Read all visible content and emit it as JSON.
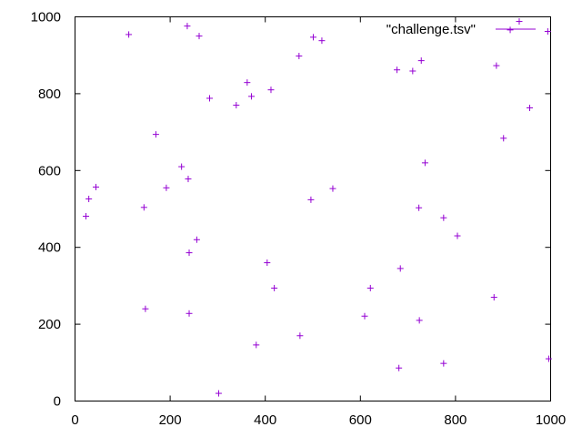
{
  "chart_data": {
    "type": "scatter",
    "title": "",
    "xlabel": "",
    "ylabel": "",
    "xlim": [
      0,
      1000
    ],
    "ylim": [
      0,
      1000
    ],
    "x_ticks": [
      0,
      200,
      400,
      600,
      800,
      1000
    ],
    "y_ticks": [
      0,
      200,
      400,
      600,
      800,
      1000
    ],
    "grid": false,
    "legend_position": "top-right",
    "marker": "plus",
    "series": [
      {
        "name": "\"challenge.tsv\"",
        "color": "#9400d3",
        "points": [
          [
            23,
            481
          ],
          [
            29,
            526
          ],
          [
            44,
            557
          ],
          [
            113,
            954
          ],
          [
            145,
            504
          ],
          [
            148,
            240
          ],
          [
            170,
            694
          ],
          [
            192,
            555
          ],
          [
            224,
            610
          ],
          [
            236,
            976
          ],
          [
            238,
            578
          ],
          [
            240,
            386
          ],
          [
            240,
            228
          ],
          [
            256,
            420
          ],
          [
            261,
            950
          ],
          [
            283,
            788
          ],
          [
            302,
            20
          ],
          [
            339,
            770
          ],
          [
            362,
            829
          ],
          [
            371,
            793
          ],
          [
            381,
            146
          ],
          [
            404,
            360
          ],
          [
            412,
            810
          ],
          [
            419,
            294
          ],
          [
            471,
            898
          ],
          [
            473,
            170
          ],
          [
            496,
            524
          ],
          [
            501,
            947
          ],
          [
            519,
            938
          ],
          [
            542,
            553
          ],
          [
            609,
            221
          ],
          [
            621,
            294
          ],
          [
            677,
            862
          ],
          [
            681,
            86
          ],
          [
            684,
            345
          ],
          [
            710,
            859
          ],
          [
            723,
            503
          ],
          [
            724,
            210
          ],
          [
            728,
            886
          ],
          [
            736,
            620
          ],
          [
            775,
            477
          ],
          [
            775,
            98
          ],
          [
            804,
            430
          ],
          [
            881,
            270
          ],
          [
            886,
            873
          ],
          [
            901,
            684
          ],
          [
            915,
            966
          ],
          [
            934,
            988
          ],
          [
            956,
            763
          ],
          [
            994,
            962
          ],
          [
            996,
            110
          ]
        ]
      }
    ]
  }
}
